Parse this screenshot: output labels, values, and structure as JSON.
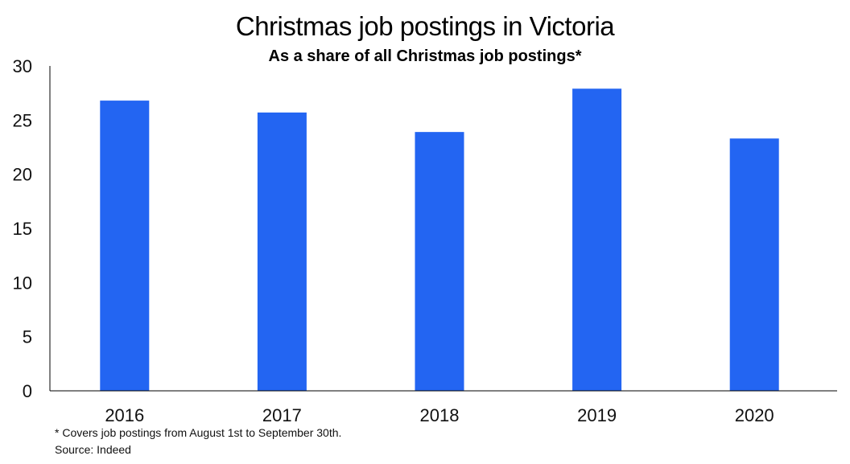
{
  "chart_data": {
    "type": "bar",
    "title": "Christmas job postings in Victoria",
    "subtitle": "As a share of all Christmas job postings*",
    "categories": [
      "2016",
      "2017",
      "2018",
      "2019",
      "2020"
    ],
    "values": [
      26.8,
      25.7,
      23.9,
      27.9,
      23.3
    ],
    "ylim": [
      0,
      30
    ],
    "yticks": [
      "0",
      "5",
      "10",
      "15",
      "20",
      "25",
      "30"
    ],
    "xlabel": "",
    "ylabel": "",
    "grid": false,
    "legend": "none",
    "bar_color": "#2365F2"
  },
  "footnote": "* Covers job postings from August 1st to September 30th.",
  "source": "Source: Indeed"
}
